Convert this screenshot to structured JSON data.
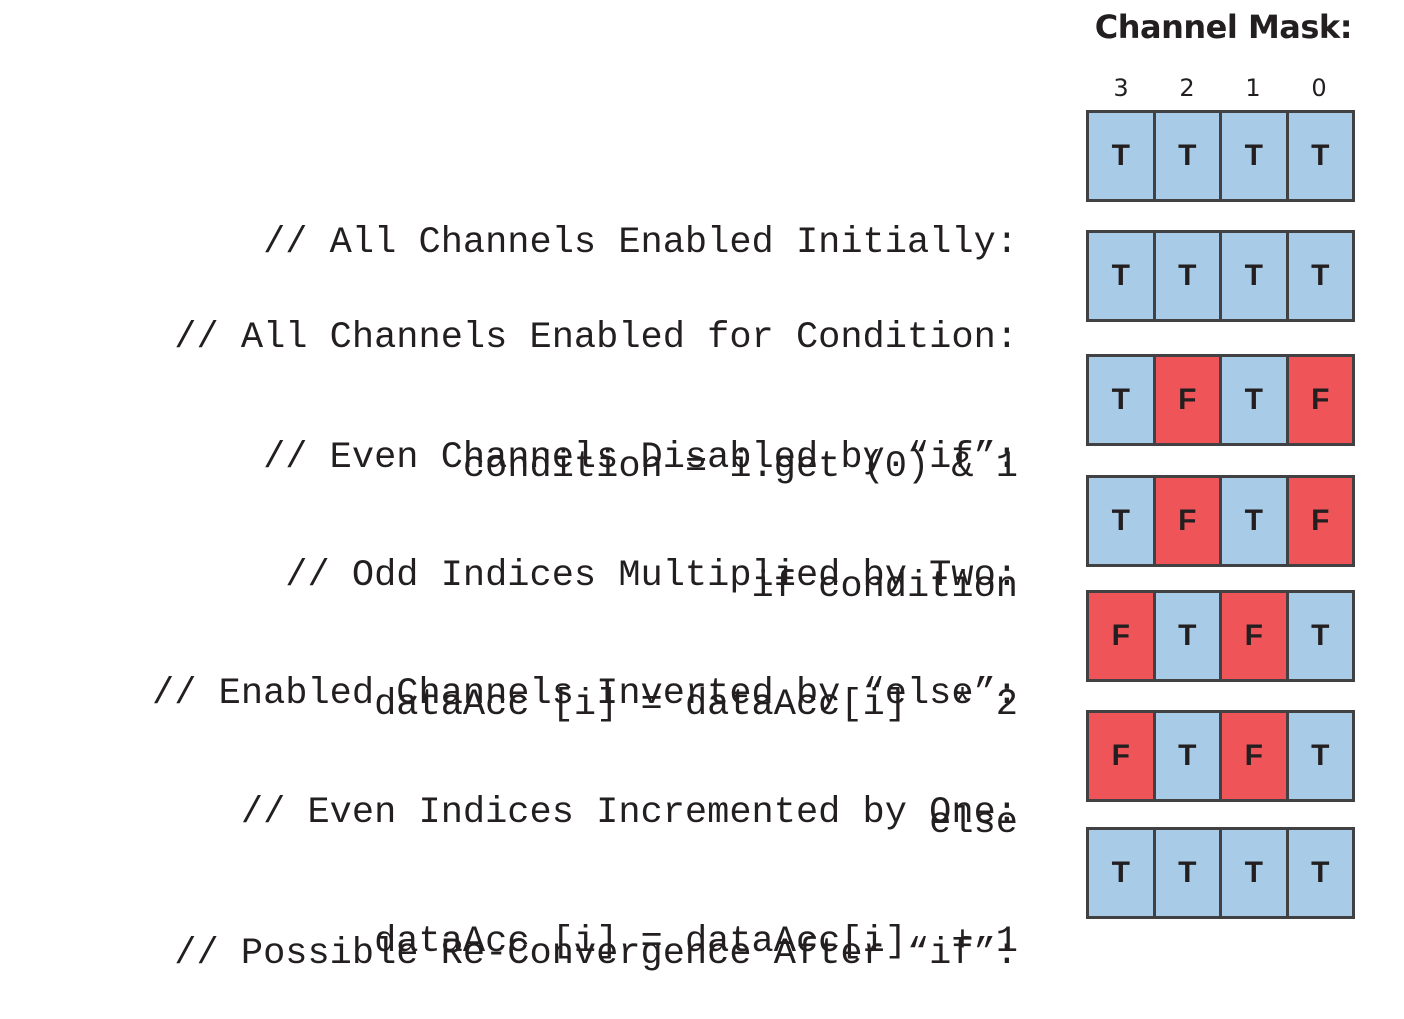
{
  "title": "Channel Mask:",
  "channel_indices": [
    "3",
    "2",
    "1",
    "0"
  ],
  "colors": {
    "true": "#a8cce8",
    "false": "#ee5458",
    "border": "#414042",
    "text": "#231f20"
  },
  "steps": [
    {
      "lines": [
        "// All Channels Enabled Initially:"
      ],
      "mask": [
        "T",
        "T",
        "T",
        "T"
      ]
    },
    {
      "lines": [
        "// All Channels Enabled for Condition:",
        "condition = i.get (0) & 1"
      ],
      "mask": [
        "T",
        "T",
        "T",
        "T"
      ]
    },
    {
      "lines": [
        "// Even Channels Disabled by “if”:",
        "if condition"
      ],
      "mask": [
        "T",
        "F",
        "T",
        "F"
      ]
    },
    {
      "lines": [
        "// Odd Indices Multiplied by Two:",
        "dataAcc [i] = dataAcc[i]  * 2"
      ],
      "mask": [
        "T",
        "F",
        "T",
        "F"
      ]
    },
    {
      "lines": [
        "// Enabled Channels Inverted by “else”:",
        "else"
      ],
      "mask": [
        "F",
        "T",
        "F",
        "T"
      ]
    },
    {
      "lines": [
        "// Even Indices Incremented by One:",
        "dataAcc [i] = dataAcc[i]  + 1"
      ],
      "mask": [
        "F",
        "T",
        "F",
        "T"
      ]
    },
    {
      "lines": [
        "// Possible Re-Convergence After “if”:"
      ],
      "mask": [
        "T",
        "T",
        "T",
        "T"
      ]
    }
  ]
}
